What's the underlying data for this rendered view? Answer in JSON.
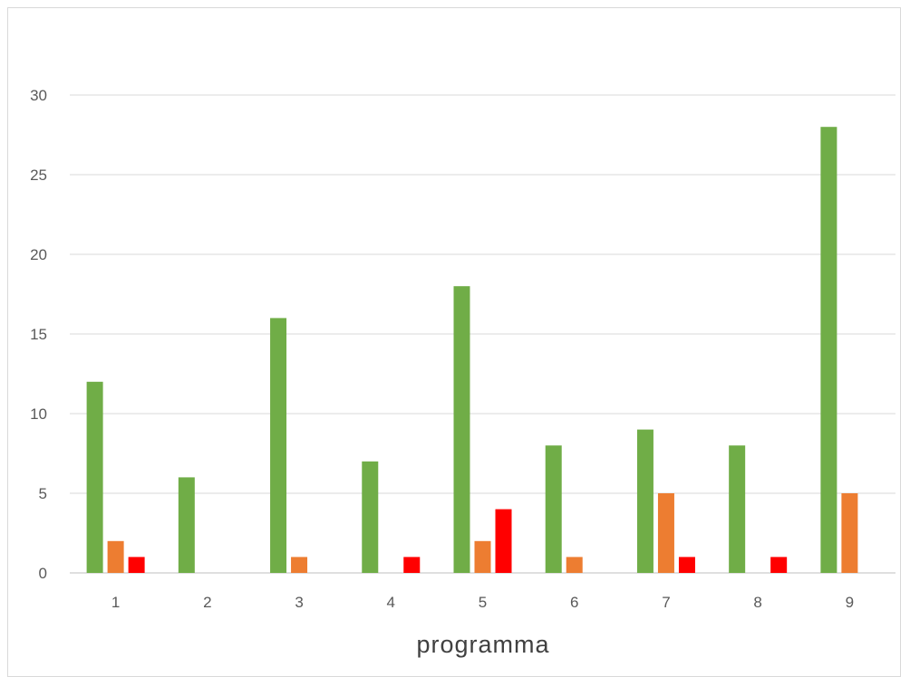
{
  "chart_data": {
    "type": "bar",
    "categories": [
      "1",
      "2",
      "3",
      "4",
      "5",
      "6",
      "7",
      "8",
      "9"
    ],
    "series": [
      {
        "color": "#70ad47",
        "values": [
          12,
          6,
          16,
          7,
          18,
          8,
          9,
          8,
          28
        ]
      },
      {
        "color": "#ed7d31",
        "values": [
          2,
          0,
          1,
          0,
          2,
          1,
          5,
          0,
          5
        ]
      },
      {
        "color": "#ff0000",
        "values": [
          1,
          0,
          0,
          1,
          4,
          0,
          1,
          1,
          0
        ]
      }
    ],
    "title": "",
    "xlabel": "programma",
    "ylabel": "",
    "ylim": [
      0,
      30
    ],
    "yticks": [
      "0",
      "5",
      "10",
      "15",
      "20",
      "25",
      "30"
    ],
    "grid": true,
    "legend": "none"
  },
  "colors": {
    "gridline": "#d9d9d9",
    "axis": "#bfbfbf"
  }
}
